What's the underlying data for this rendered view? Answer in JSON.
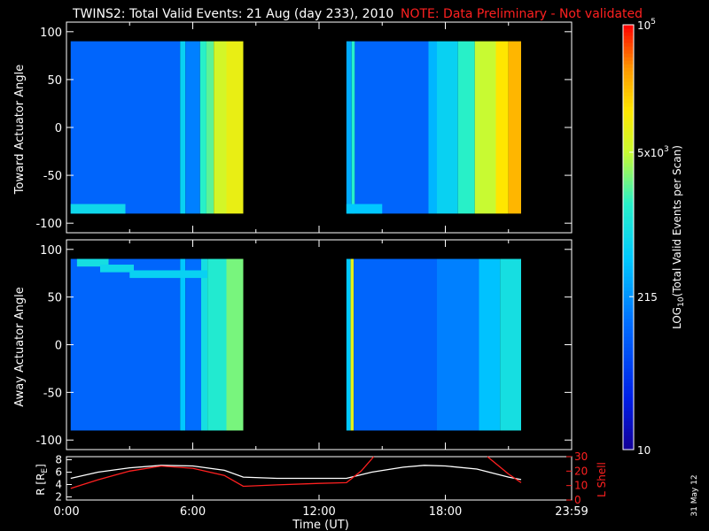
{
  "title": "TWINS2: Total Valid Events: 21 Aug (day 233), 2010",
  "note": "NOTE: Data Preliminary - Not validated",
  "date_stamp": "31 May 12",
  "colors": {
    "background": "#000000",
    "axes": "#ffffff",
    "note": "#ff2020",
    "r_line": "#ffffff",
    "l_shell_line": "#ff2020"
  },
  "chart_data": [
    {
      "type": "heatmap",
      "id": "toward",
      "ylabel": "Toward Actuator Angle",
      "ylim": [
        -110,
        110
      ],
      "yticks": [
        100,
        50,
        0,
        -50,
        -100
      ],
      "xlim_hours": [
        0,
        24
      ],
      "segments": [
        {
          "start_hour": 0.2,
          "end_hour": 8.4,
          "angle_range": [
            -90,
            90
          ],
          "columns": [
            {
              "start_hour": 0.2,
              "end_hour": 5.4,
              "log_level": 0.28
            },
            {
              "start_hour": 5.4,
              "end_hour": 5.65,
              "log_level": 0.48
            },
            {
              "start_hour": 5.65,
              "end_hour": 6.35,
              "log_level": 0.33
            },
            {
              "start_hour": 6.35,
              "end_hour": 6.65,
              "log_level": 0.58
            },
            {
              "start_hour": 6.65,
              "end_hour": 7.0,
              "log_level": 0.62
            },
            {
              "start_hour": 7.0,
              "end_hour": 7.6,
              "log_level": 0.72
            },
            {
              "start_hour": 7.6,
              "end_hour": 8.4,
              "log_level": 0.76
            }
          ],
          "bands": [
            {
              "start_hour": 0.2,
              "end_hour": 2.8,
              "angle_low": -90,
              "angle_high": -80,
              "log_level": 0.5
            }
          ]
        },
        {
          "start_hour": 13.3,
          "end_hour": 21.6,
          "angle_range": [
            -90,
            90
          ],
          "columns": [
            {
              "start_hour": 13.3,
              "end_hour": 13.55,
              "log_level": 0.4
            },
            {
              "start_hour": 13.55,
              "end_hour": 13.7,
              "log_level": 0.58
            },
            {
              "start_hour": 13.7,
              "end_hour": 17.2,
              "log_level": 0.28
            },
            {
              "start_hour": 17.2,
              "end_hour": 17.6,
              "log_level": 0.42
            },
            {
              "start_hour": 17.6,
              "end_hour": 18.6,
              "log_level": 0.48
            },
            {
              "start_hour": 18.6,
              "end_hour": 19.4,
              "log_level": 0.58
            },
            {
              "start_hour": 19.4,
              "end_hour": 20.4,
              "log_level": 0.7
            },
            {
              "start_hour": 20.4,
              "end_hour": 21.0,
              "log_level": 0.8
            },
            {
              "start_hour": 21.0,
              "end_hour": 21.6,
              "log_level": 0.86
            }
          ],
          "bands": [
            {
              "start_hour": 13.3,
              "end_hour": 15.0,
              "angle_low": -90,
              "angle_high": -80,
              "log_level": 0.45
            }
          ]
        }
      ]
    },
    {
      "type": "heatmap",
      "id": "away",
      "ylabel": "Away Actuator Angle",
      "ylim": [
        -110,
        110
      ],
      "yticks": [
        100,
        50,
        0,
        -50,
        -100
      ],
      "xlim_hours": [
        0,
        24
      ],
      "segments": [
        {
          "start_hour": 0.2,
          "end_hour": 8.4,
          "angle_range": [
            -90,
            90
          ],
          "columns": [
            {
              "start_hour": 0.2,
              "end_hour": 5.4,
              "log_level": 0.28
            },
            {
              "start_hour": 5.4,
              "end_hour": 5.65,
              "log_level": 0.45
            },
            {
              "start_hour": 5.65,
              "end_hour": 6.4,
              "log_level": 0.3
            },
            {
              "start_hour": 6.4,
              "end_hour": 6.7,
              "log_level": 0.52
            },
            {
              "start_hour": 6.7,
              "end_hour": 7.6,
              "log_level": 0.56
            },
            {
              "start_hour": 7.6,
              "end_hour": 8.4,
              "log_level": 0.64
            }
          ],
          "bands": [
            {
              "start_hour": 0.5,
              "end_hour": 2.0,
              "angle_low": 82,
              "angle_high": 90,
              "log_level": 0.52
            },
            {
              "start_hour": 1.6,
              "end_hour": 3.2,
              "angle_low": 76,
              "angle_high": 84,
              "log_level": 0.5
            },
            {
              "start_hour": 3.0,
              "end_hour": 6.7,
              "angle_low": 70,
              "angle_high": 78,
              "log_level": 0.48
            }
          ]
        },
        {
          "start_hour": 13.3,
          "end_hour": 21.6,
          "angle_range": [
            -90,
            90
          ],
          "columns": [
            {
              "start_hour": 13.3,
              "end_hour": 13.5,
              "log_level": 0.45
            },
            {
              "start_hour": 13.5,
              "end_hour": 13.65,
              "log_level": 0.75
            },
            {
              "start_hour": 13.65,
              "end_hour": 17.6,
              "log_level": 0.28
            },
            {
              "start_hour": 17.6,
              "end_hour": 19.6,
              "log_level": 0.33
            },
            {
              "start_hour": 19.6,
              "end_hour": 20.6,
              "log_level": 0.44
            },
            {
              "start_hour": 20.6,
              "end_hour": 21.6,
              "log_level": 0.52
            }
          ],
          "bands": []
        }
      ]
    },
    {
      "type": "line",
      "id": "ephemeris",
      "xlabel": "Time (UT)",
      "xticks": [
        "0:00",
        "6:00",
        "12:00",
        "18:00",
        "23:59"
      ],
      "xtick_hours": [
        0,
        6,
        12,
        18,
        24
      ],
      "left_axis": {
        "label_main": "R [R",
        "label_sub": "E",
        "label_end": "]",
        "ylim": [
          1.5,
          8.5
        ],
        "yticks": [
          2,
          4,
          6,
          8
        ]
      },
      "right_axis": {
        "label": "L Shell",
        "ylim": [
          0,
          30
        ],
        "yticks": [
          0,
          10,
          20,
          30
        ]
      },
      "series": [
        {
          "axis": "left",
          "color": "#ffffff",
          "x": [
            0.2,
            1.5,
            3.0,
            4.5,
            6.0,
            7.5,
            8.4,
            10.0,
            12.0,
            13.3,
            14.5,
            16.0,
            17.0,
            18.0,
            19.5,
            21.0,
            21.6
          ],
          "y": [
            5.0,
            6.0,
            6.7,
            7.1,
            7.0,
            6.3,
            5.2,
            5.0,
            5.0,
            5.0,
            6.0,
            6.8,
            7.1,
            7.0,
            6.5,
            5.2,
            4.8
          ]
        },
        {
          "axis": "right",
          "color": "#ff2020",
          "x": [
            0.2,
            1.5,
            3.0,
            4.5,
            6.0,
            7.5,
            8.4,
            10.0,
            12.0,
            13.3,
            14.0,
            14.6
          ],
          "y": [
            8.0,
            14.0,
            20.0,
            23.5,
            22.0,
            17.0,
            9.5,
            10.5,
            11.5,
            12.0,
            20.0,
            30.0
          ]
        },
        {
          "axis": "right",
          "color": "#ff2020",
          "x": [
            20.0,
            21.0,
            21.6
          ],
          "y": [
            30.0,
            18.0,
            12.0
          ]
        }
      ]
    },
    {
      "type": "colorbar",
      "id": "colorbar",
      "label_main": "LOG",
      "label_sub": "10",
      "label_rest": "(Total Valid Events per Scan)",
      "tick_labels": [
        {
          "base": "10",
          "exp": "5",
          "level": 1.0
        },
        {
          "base": "5x10",
          "exp": "3",
          "level": 0.7
        },
        {
          "base": "215",
          "exp": "",
          "level": 0.36
        },
        {
          "base": "10",
          "exp": "",
          "level": 0.0
        }
      ]
    }
  ]
}
